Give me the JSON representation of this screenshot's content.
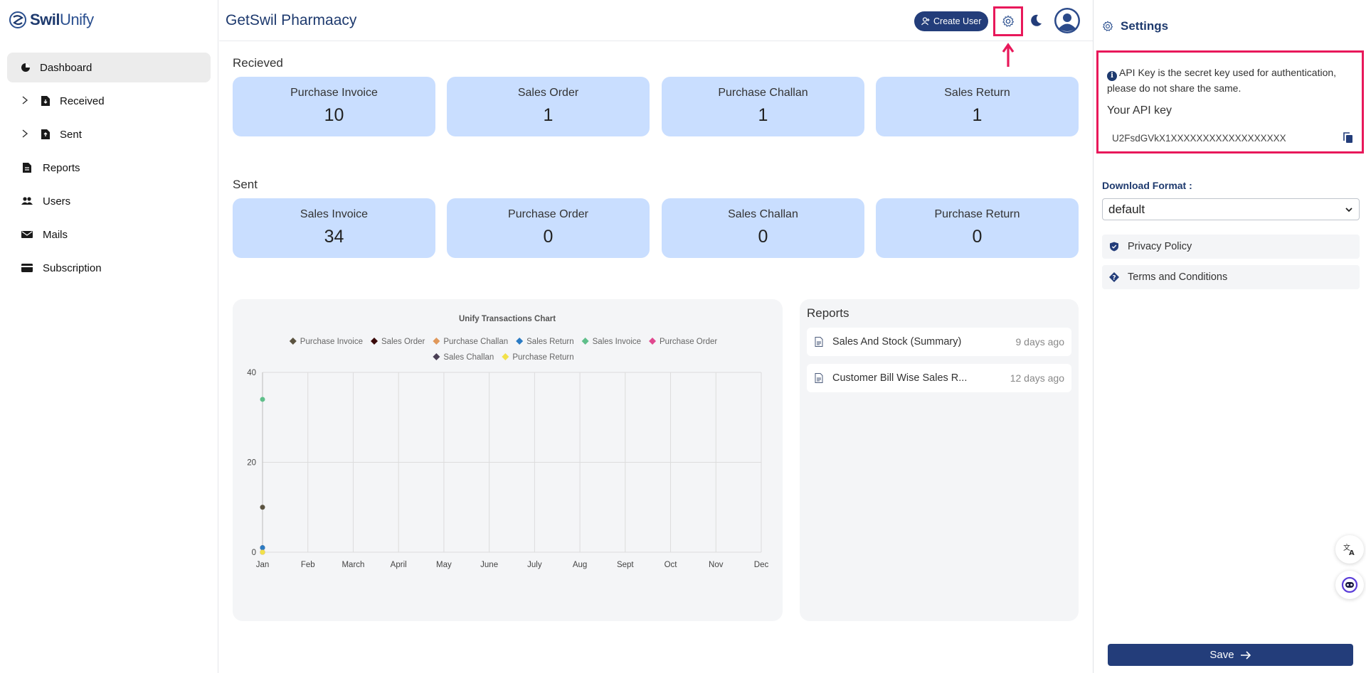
{
  "brand": {
    "name_a": "Swil",
    "name_b": "Unify"
  },
  "sidebar": {
    "items": [
      {
        "label": "Dashboard",
        "icon": "pie-chart-icon",
        "active": true
      },
      {
        "label": "Received",
        "icon": "file-in-icon",
        "expandable": true
      },
      {
        "label": "Sent",
        "icon": "file-out-icon",
        "expandable": true
      },
      {
        "label": "Reports",
        "icon": "report-icon"
      },
      {
        "label": "Users",
        "icon": "users-icon"
      },
      {
        "label": "Mails",
        "icon": "mail-icon"
      },
      {
        "label": "Subscription",
        "icon": "card-icon"
      }
    ]
  },
  "header": {
    "company": "GetSwil Pharmaacy",
    "create_user": "Create User",
    "icons": [
      "user-plus-icon",
      "gear-icon",
      "moon-icon",
      "avatar-icon"
    ]
  },
  "received": {
    "title": "Recieved",
    "cards": [
      {
        "label": "Purchase Invoice",
        "value": "10"
      },
      {
        "label": "Sales Order",
        "value": "1"
      },
      {
        "label": "Purchase Challan",
        "value": "1"
      },
      {
        "label": "Sales Return",
        "value": "1"
      }
    ]
  },
  "sent": {
    "title": "Sent",
    "cards": [
      {
        "label": "Sales Invoice",
        "value": "34"
      },
      {
        "label": "Purchase Order",
        "value": "0"
      },
      {
        "label": "Sales Challan",
        "value": "0"
      },
      {
        "label": "Purchase Return",
        "value": "0"
      }
    ]
  },
  "chart_data": {
    "type": "scatter",
    "title": "Unify Transactions Chart",
    "x": [
      "Jan",
      "Feb",
      "March",
      "April",
      "May",
      "June",
      "July",
      "Aug",
      "Sept",
      "Oct",
      "Nov",
      "Dec"
    ],
    "ylim": [
      0,
      40
    ],
    "yticks": [
      0,
      20,
      40
    ],
    "grid": true,
    "legend": "top",
    "series": [
      {
        "name": "Purchase Invoice",
        "color": "#5b5340",
        "values": [
          10
        ]
      },
      {
        "name": "Sales Order",
        "color": "#3a0a0a",
        "values": [
          1
        ]
      },
      {
        "name": "Purchase Challan",
        "color": "#e0985a",
        "values": [
          1
        ]
      },
      {
        "name": "Sales Return",
        "color": "#2b7bc4",
        "values": [
          1
        ]
      },
      {
        "name": "Sales Invoice",
        "color": "#5fbf8a",
        "values": [
          34
        ]
      },
      {
        "name": "Purchase Order",
        "color": "#e0488f",
        "values": [
          0
        ]
      },
      {
        "name": "Sales Challan",
        "color": "#4a3f55",
        "values": [
          0
        ]
      },
      {
        "name": "Purchase Return",
        "color": "#f2e14a",
        "values": [
          0
        ]
      }
    ]
  },
  "reports": {
    "title": "Reports",
    "items": [
      {
        "name": "Sales And Stock (Summary)",
        "time": "9 days ago"
      },
      {
        "name": "Customer Bill Wise Sales R...",
        "time": "12 days ago"
      }
    ]
  },
  "settings": {
    "title": "Settings",
    "api_info": "API Key is the secret key used for authentication, please do not share the same.",
    "api_label": "Your API key",
    "api_key": "U2FsdGVkX1XXXXXXXXXXXXXXXXXX",
    "download_label": "Download Format :",
    "download_value": "default",
    "privacy": "Privacy Policy",
    "terms": "Terms and Conditions",
    "save": "Save"
  },
  "colors": {
    "accent": "#233d7a",
    "highlight": "#e8185a",
    "card": "#c9deff"
  }
}
